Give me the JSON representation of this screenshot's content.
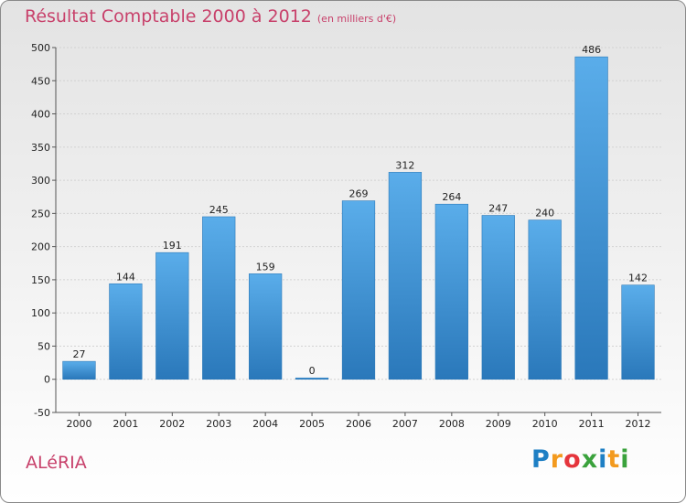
{
  "chart_data": {
    "type": "bar",
    "title": "Résultat Comptable 2000 à 2012",
    "subtitle": "(en milliers d'€)",
    "categories": [
      "2000",
      "2001",
      "2002",
      "2003",
      "2004",
      "2005",
      "2006",
      "2007",
      "2008",
      "2009",
      "2010",
      "2011",
      "2012"
    ],
    "values": [
      27,
      144,
      191,
      245,
      159,
      0,
      269,
      312,
      264,
      247,
      240,
      486,
      142
    ],
    "ylim": [
      -50,
      500
    ],
    "yticks": [
      -50,
      0,
      50,
      100,
      150,
      200,
      250,
      300,
      350,
      400,
      450,
      500
    ],
    "xlabel": "",
    "ylabel": "",
    "grid": true,
    "bar_color": "#3f93d6"
  },
  "footer": {
    "commune": "ALéRIA",
    "logo_letters": [
      "P",
      "r",
      "o",
      "x",
      "i",
      "t",
      "i"
    ],
    "logo_colors": [
      "#1e7fc4",
      "#f39a1e",
      "#e5353c",
      "#3aa23c",
      "#1e7fc4",
      "#f39a1e",
      "#3aa23c"
    ]
  }
}
